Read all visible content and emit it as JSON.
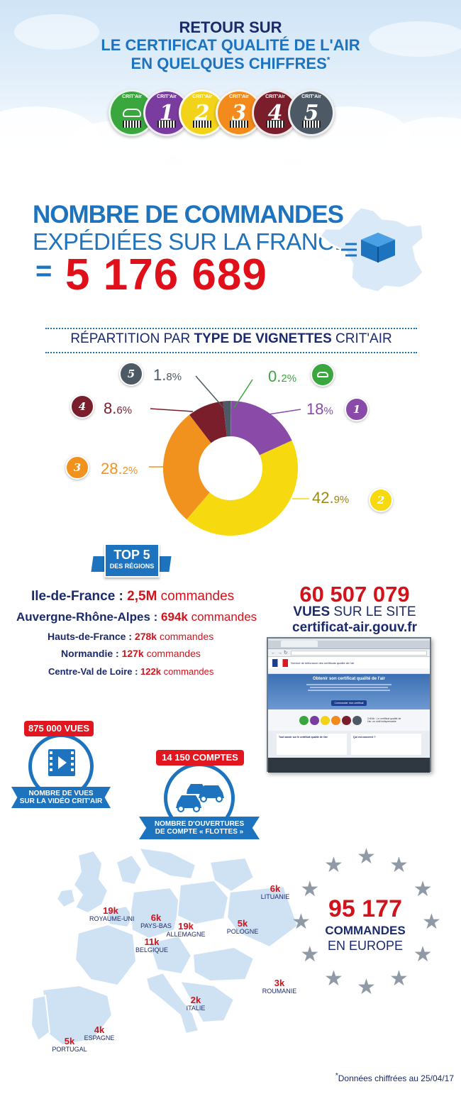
{
  "header": {
    "line1": "RETOUR SUR",
    "line2": "LE CERTIFICAT QUALITÉ DE L'AIR",
    "line3": "EN QUELQUES CHIFFRES",
    "asterisk": "*",
    "badges": [
      {
        "label": "",
        "color": "#3aa63e"
      },
      {
        "label": "1",
        "color": "#7b3c9f"
      },
      {
        "label": "2",
        "color": "#f3d21a"
      },
      {
        "label": "3",
        "color": "#f28b1b"
      },
      {
        "label": "4",
        "color": "#7a1e2b"
      },
      {
        "label": "5",
        "color": "#4d5964"
      }
    ],
    "badge_tag": "CRIT'Air"
  },
  "commandes": {
    "title1": "NOMBRE DE COMMANDES",
    "title2": "EXPÉDIÉES SUR LA FRANCE",
    "equals": "=",
    "value": "5 176 689"
  },
  "repartition": {
    "title_pre": "RÉPARTITION PAR ",
    "title_bold": "TYPE DE VIGNETTES",
    "title_post": " CRIT'AIR",
    "chart_data": {
      "type": "pie",
      "categories": [
        "Crit'Air électrique",
        "Crit'Air 1",
        "Crit'Air 2",
        "Crit'Air 3",
        "Crit'Air 4",
        "Crit'Air 5"
      ],
      "values": [
        0.2,
        18,
        42.9,
        28.2,
        8.6,
        1.8
      ],
      "colors": [
        "#3aa63e",
        "#8a4ba8",
        "#f7d90f",
        "#f2921e",
        "#7a1e2b",
        "#4d5964"
      ],
      "labels": [
        {
          "int": "0.",
          "dec": "2%"
        },
        {
          "int": "18",
          "dec": "%"
        },
        {
          "int": "42.",
          "dec": "9%"
        },
        {
          "int": "28.",
          "dec": "2%"
        },
        {
          "int": "8.",
          "dec": "6%"
        },
        {
          "int": "1.",
          "dec": "8%"
        }
      ]
    }
  },
  "top5": {
    "badge_line1": "TOP 5",
    "badge_line2": "DES RÉGIONS",
    "regions": [
      {
        "name": "Ile-de-France : ",
        "value": "2,5M",
        "unit": " commandes"
      },
      {
        "name": "Auvergne-Rhône-Alpes : ",
        "value": "694k",
        "unit": " commandes"
      },
      {
        "name": "Hauts-de-France : ",
        "value": "278k",
        "unit": " commandes"
      },
      {
        "name": "Normandie : ",
        "value": "127k",
        "unit": " commandes"
      },
      {
        "name": "Centre-Val de Loire : ",
        "value": "122k",
        "unit": " commandes"
      }
    ]
  },
  "vues_site": {
    "value": "60 507 079",
    "label_bold": "VUES",
    "label_rest": " SUR LE SITE",
    "url": "certificat-air.gouv.fr",
    "browser": {
      "header": "Service de délivrance des certificats qualité de l'air",
      "banner_title": "Obtenir son certificat qualité de l'air",
      "banner_button": "Commander mon certificat",
      "side_text": "Crit'Air : Le certificat qualité de l'air, un outil indispensable",
      "box1_title": "Tout savoir sur le certificat qualité de l'air",
      "box2_title": "Qui est concerné ?"
    }
  },
  "video": {
    "pill": "875 000 VUES",
    "ribbon_line1": "NOMBRE DE VUES",
    "ribbon_line2": "SUR LA VIDÉO CRIT'AIR"
  },
  "comptes": {
    "pill": "14 150 COMPTES",
    "ribbon_line1": "NOMBRE D'OUVERTURES",
    "ribbon_line2": "DE COMPTE « FLOTTES »"
  },
  "europe": {
    "countries": [
      {
        "num": "19k",
        "name": "ROYAUME-UNI"
      },
      {
        "num": "6k",
        "name": "PAYS-BAS"
      },
      {
        "num": "11k",
        "name": "BELGIQUE"
      },
      {
        "num": "19k",
        "name": "ALLEMAGNE"
      },
      {
        "num": "5k",
        "name": "POLOGNE"
      },
      {
        "num": "6k",
        "name": "LITUANIE"
      },
      {
        "num": "3k",
        "name": "ROUMANIE"
      },
      {
        "num": "2k",
        "name": "ITALIE"
      },
      {
        "num": "4k",
        "name": "ESPAGNE"
      },
      {
        "num": "5k",
        "name": "PORTUGAL"
      }
    ],
    "total": "95 177",
    "total_line1": "COMMANDES",
    "total_line2": "EN EUROPE"
  },
  "footnote": {
    "star": "*",
    "text": "Données chiffrées au 25/04/17"
  }
}
